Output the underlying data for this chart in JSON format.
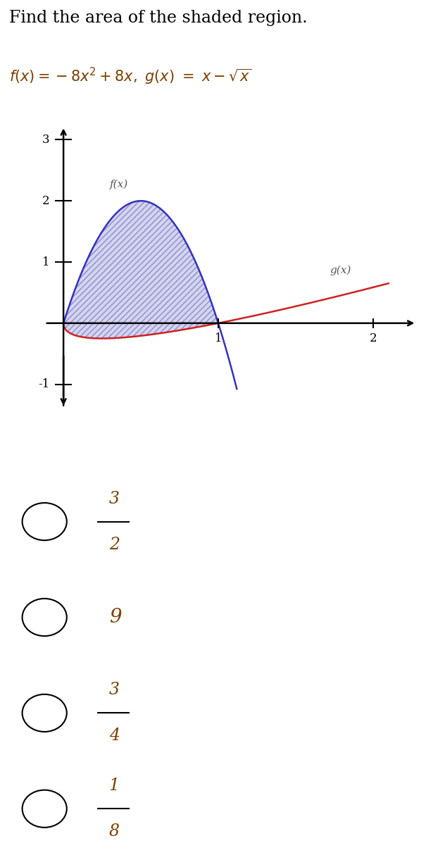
{
  "title_line1": "Find the area of the shaded region.",
  "title_line2_latex": "$f(x)=-8x^2+8x,\\ g(x)\\ =\\ x-\\sqrt{x}$",
  "f_label": "f(x)",
  "g_label": "g(x)",
  "xlim": [
    -0.18,
    2.35
  ],
  "ylim": [
    -1.45,
    3.3
  ],
  "x_ticks": [
    1,
    2
  ],
  "y_ticks": [
    -1,
    1,
    2,
    3
  ],
  "hatch_color": "#4444bb",
  "hatch_pattern": "////",
  "f_color": "#3333bb",
  "g_color": "#cc2222",
  "fill_color": "#aaaadd",
  "fill_alpha": 0.5,
  "axis_color": "#000000",
  "fig_width": 6.32,
  "fig_height": 12.31,
  "options_data": [
    [
      "3",
      "2"
    ],
    [
      "9",
      null
    ],
    [
      "3",
      "4"
    ],
    [
      "1",
      "8"
    ]
  ]
}
